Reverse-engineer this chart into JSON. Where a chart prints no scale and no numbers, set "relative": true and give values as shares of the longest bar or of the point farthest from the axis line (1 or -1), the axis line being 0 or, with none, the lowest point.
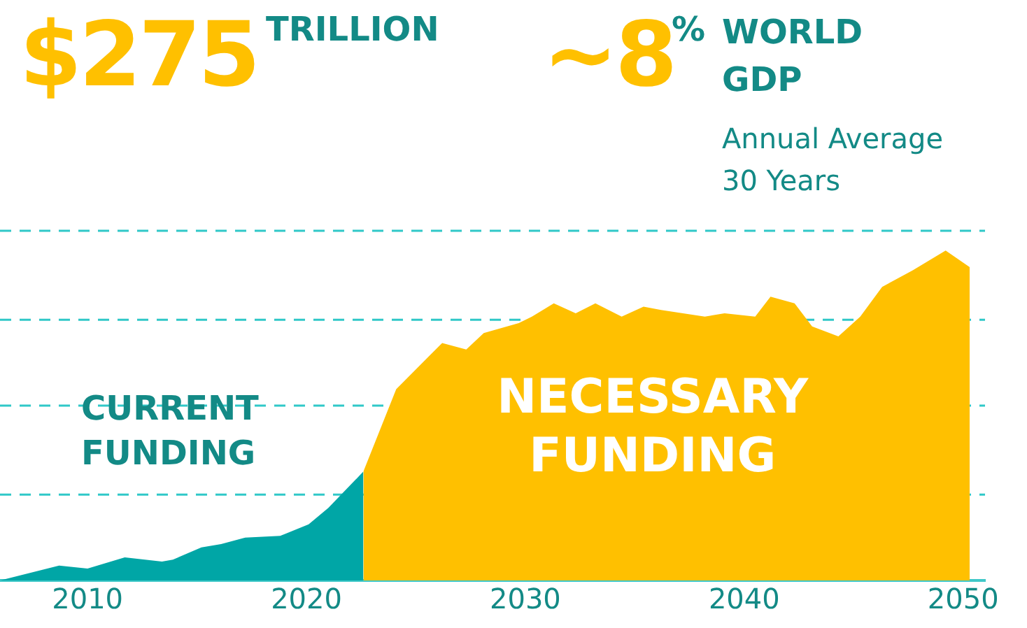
{
  "chart_data": {
    "type": "area",
    "relative": true,
    "annotations": [
      "$275",
      "TRILLION",
      "~8",
      "%",
      "WORLD GDP",
      "Annual Average 30 Years"
    ],
    "xlim": [
      2006,
      2051
    ],
    "xticks": [
      2010,
      2020,
      2030,
      2040,
      2050
    ],
    "legend": false,
    "ref_lines": [
      {
        "axis": "y",
        "value": 0.26,
        "color": "#30c8c8",
        "line_style": "dashed"
      },
      {
        "axis": "y",
        "value": 0.53,
        "color": "#30c8c8",
        "line_style": "dashed"
      },
      {
        "axis": "y",
        "value": 0.79,
        "color": "#30c8c8",
        "line_style": "dashed"
      },
      {
        "axis": "y",
        "value": 1.06,
        "color": "#30c8c8",
        "line_style": "dashed"
      }
    ],
    "series": [
      {
        "name": "CURRENT FUNDING",
        "color": "#00a6a6",
        "x": [
          2006,
          2008.7,
          2010,
          2011.7,
          2013.4,
          2013.9,
          2015.2,
          2016.1,
          2017.2,
          2018.8,
          2020.1,
          2021,
          2022.6
        ],
        "values": [
          0,
          0.045,
          0.036,
          0.07,
          0.057,
          0.063,
          0.1,
          0.11,
          0.13,
          0.135,
          0.17,
          0.22,
          0.33
        ]
      },
      {
        "name": "NECESSARY FUNDING",
        "color": "#ffc000",
        "x": [
          2022.6,
          2024.1,
          2026.2,
          2027.3,
          2028.1,
          2029.7,
          2030.3,
          2031.3,
          2032.3,
          2033.2,
          2034.4,
          2035.4,
          2036.2,
          2037.2,
          2038.2,
          2039.1,
          2040.5,
          2041.2,
          2042.3,
          2043.1,
          2044.3,
          2045.3,
          2046.3,
          2047.7,
          2049.2,
          2050.3
        ],
        "values": [
          0.33,
          0.58,
          0.72,
          0.7,
          0.75,
          0.78,
          0.8,
          0.84,
          0.81,
          0.84,
          0.8,
          0.83,
          0.82,
          0.81,
          0.8,
          0.81,
          0.8,
          0.86,
          0.84,
          0.77,
          0.74,
          0.8,
          0.89,
          0.94,
          1,
          0.95
        ]
      }
    ]
  }
}
